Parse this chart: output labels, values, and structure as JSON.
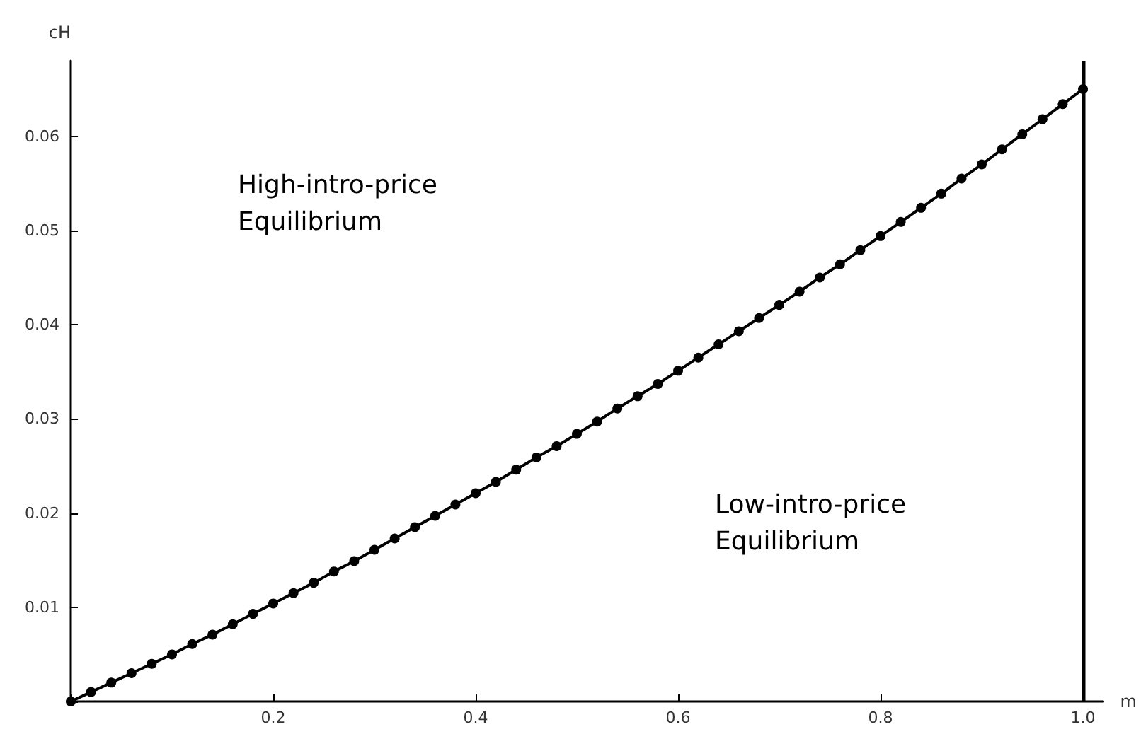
{
  "chart_data": {
    "type": "line",
    "xlabel": "m",
    "ylabel": "cH",
    "annotations": [
      "High-intro-price Equilibrium",
      "Low-intro-price Equilibrium"
    ],
    "x": [
      0,
      0.02,
      0.04,
      0.06,
      0.08,
      0.1,
      0.12,
      0.14,
      0.16,
      0.18,
      0.2,
      0.22,
      0.24,
      0.26,
      0.28,
      0.3,
      0.32,
      0.34,
      0.36,
      0.38,
      0.4,
      0.42,
      0.44,
      0.46,
      0.48,
      0.5,
      0.52,
      0.54,
      0.56,
      0.58,
      0.6,
      0.62,
      0.64,
      0.66,
      0.68,
      0.7,
      0.72,
      0.74,
      0.76,
      0.78,
      0.8,
      0.82,
      0.84,
      0.86,
      0.88,
      0.9,
      0.92,
      0.94,
      0.96,
      0.98,
      1.0
    ],
    "series": [
      {
        "color": "#000000",
        "values": [
          0,
          0.001,
          0.002,
          0.003,
          0.004,
          0.005,
          0.0061,
          0.0071,
          0.0082,
          0.0093,
          0.0104,
          0.0115,
          0.0126,
          0.0138,
          0.0149,
          0.0161,
          0.0173,
          0.0185,
          0.0197,
          0.0209,
          0.0221,
          0.0233,
          0.0246,
          0.0259,
          0.0271,
          0.0284,
          0.0297,
          0.0311,
          0.0324,
          0.0337,
          0.0351,
          0.0365,
          0.0379,
          0.0393,
          0.0407,
          0.0421,
          0.0435,
          0.045,
          0.0464,
          0.0479,
          0.0494,
          0.0509,
          0.0524,
          0.0539,
          0.0555,
          0.057,
          0.0586,
          0.0602,
          0.0618,
          0.0634,
          0.065
        ]
      }
    ],
    "xlim": [
      0,
      1.02
    ],
    "ylim": [
      0,
      0.068
    ],
    "xticks": [
      {
        "value": 0,
        "label": null
      },
      0.2,
      0.4,
      0.6,
      0.8,
      {
        "value": 1.0,
        "label": "1.0"
      }
    ],
    "yticks": [
      {
        "value": 0,
        "label": null
      },
      0.01,
      0.02,
      0.03,
      0.04,
      0.05,
      0.06
    ],
    "ref_lines": [
      {
        "axis": "x",
        "value": 1.0,
        "color": "#000000"
      }
    ],
    "grid": false,
    "marker": "circle",
    "line_style": "solid"
  }
}
